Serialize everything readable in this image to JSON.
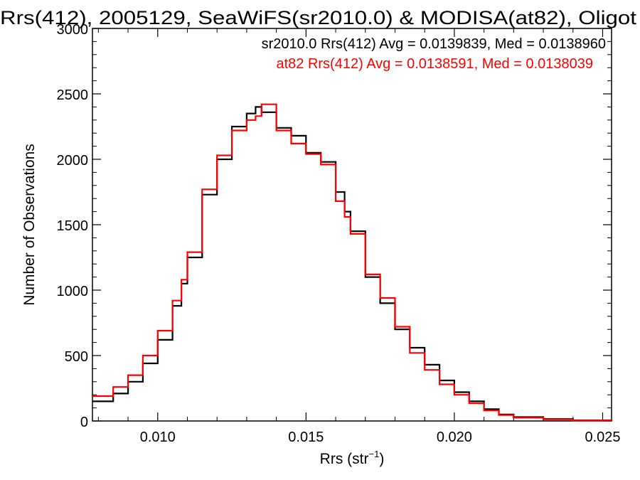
{
  "chart_data": {
    "type": "line",
    "title": "Rrs(412), 2005129, SeaWiFS(sr2010.0) & MODISA(at82), Oligot",
    "xlabel": "Rrs (str",
    "xlabel_exponent": "−1",
    "xlabel_suffix": ")",
    "ylabel": "Number of Observations",
    "xlim": [
      0.0078,
      0.0253
    ],
    "ylim": [
      0,
      3000
    ],
    "xticks": [
      {
        "value": 0.01,
        "label": "0.010"
      },
      {
        "value": 0.015,
        "label": "0.015"
      },
      {
        "value": 0.02,
        "label": "0.020"
      },
      {
        "value": 0.025,
        "label": "0.025"
      }
    ],
    "yticks": [
      {
        "value": 0,
        "label": "0"
      },
      {
        "value": 500,
        "label": "500"
      },
      {
        "value": 1000,
        "label": "1000"
      },
      {
        "value": 1500,
        "label": "1500"
      },
      {
        "value": 2000,
        "label": "2000"
      },
      {
        "value": 2500,
        "label": "2500"
      },
      {
        "value": 3000,
        "label": "3000"
      }
    ],
    "grid": false,
    "step": true,
    "legend_position": "top-right",
    "series": [
      {
        "name": "sr2010.0",
        "color": "#000000",
        "annotation": "sr2010.0 Rrs(412) Avg = 0.0139839, Med = 0.0138960",
        "x": [
          0.0078,
          0.0085,
          0.009,
          0.0095,
          0.01,
          0.0105,
          0.0108,
          0.011,
          0.0115,
          0.012,
          0.0125,
          0.013,
          0.0133,
          0.0135,
          0.014,
          0.0145,
          0.015,
          0.0155,
          0.016,
          0.0163,
          0.0165,
          0.017,
          0.0175,
          0.018,
          0.0185,
          0.019,
          0.0195,
          0.02,
          0.0205,
          0.021,
          0.0215,
          0.022,
          0.023,
          0.024,
          0.0253
        ],
        "y": [
          150,
          210,
          300,
          440,
          620,
          880,
          1050,
          1250,
          1730,
          2000,
          2250,
          2350,
          2400,
          2360,
          2240,
          2180,
          2050,
          1980,
          1750,
          1600,
          1450,
          1100,
          900,
          700,
          560,
          430,
          310,
          220,
          150,
          90,
          50,
          30,
          15,
          5,
          2
        ]
      },
      {
        "name": "at82",
        "color": "#ff0000",
        "annotation": "at82 Rrs(412) Avg = 0.0138591, Med = 0.0138039",
        "x": [
          0.0078,
          0.0085,
          0.009,
          0.0095,
          0.01,
          0.0105,
          0.0108,
          0.011,
          0.0115,
          0.012,
          0.0125,
          0.013,
          0.0133,
          0.0135,
          0.014,
          0.0145,
          0.015,
          0.0155,
          0.016,
          0.0163,
          0.0165,
          0.017,
          0.0175,
          0.018,
          0.0185,
          0.019,
          0.0195,
          0.02,
          0.0205,
          0.021,
          0.0215,
          0.022,
          0.023,
          0.024,
          0.0253
        ],
        "y": [
          190,
          260,
          350,
          500,
          690,
          920,
          1080,
          1290,
          1770,
          2030,
          2220,
          2300,
          2330,
          2420,
          2220,
          2120,
          2040,
          1960,
          1680,
          1560,
          1430,
          1120,
          940,
          720,
          520,
          390,
          280,
          200,
          135,
          80,
          45,
          25,
          12,
          4,
          2
        ]
      }
    ]
  }
}
